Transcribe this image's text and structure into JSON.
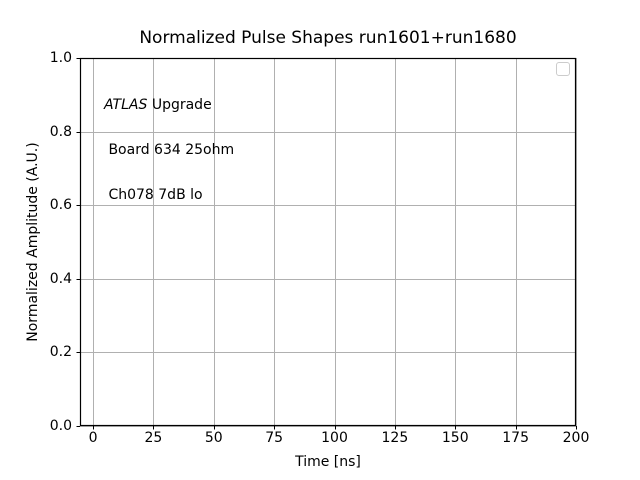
{
  "chart_data": {
    "type": "line",
    "title": "Normalized Pulse Shapes run1601+run1680",
    "xlabel": "Time [ns]",
    "ylabel": "Normalized Amplitude (A.U.)",
    "xlim": [
      -5.4,
      200
    ],
    "ylim": [
      0.0,
      1.0
    ],
    "xticks": {
      "values": [
        0,
        25,
        50,
        75,
        100,
        125,
        150,
        175,
        200
      ],
      "labels": [
        "0",
        "25",
        "50",
        "75",
        "100",
        "125",
        "150",
        "175",
        "200"
      ]
    },
    "yticks": {
      "values": [
        0.0,
        0.2,
        0.4,
        0.6,
        0.8,
        1.0
      ],
      "labels": [
        "0.0",
        "0.2",
        "0.4",
        "0.6",
        "0.8",
        "1.0"
      ]
    },
    "grid": true,
    "series": [],
    "annotation": {
      "line1_italic": "ATLAS",
      "line1_rest": " Upgrade",
      "line2": " Board 634 25ohm",
      "line3": " Ch078 7dB lo"
    },
    "legend": {
      "visible": true,
      "position": "upper right",
      "entries": []
    }
  },
  "colors": {
    "background": "#ffffff",
    "text": "#000000",
    "grid": "#b0b0b0",
    "spine": "#000000",
    "tick": "#000000",
    "legend_border": "#cccccc"
  }
}
